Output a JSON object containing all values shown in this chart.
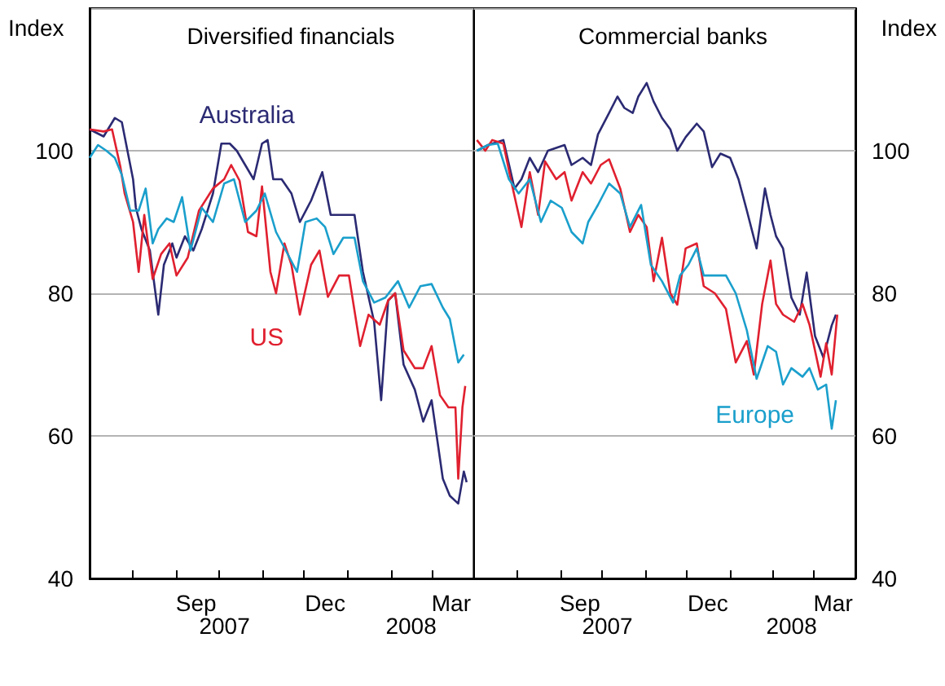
{
  "chart_data": [
    {
      "type": "line",
      "title": "Diversified financials",
      "ylabel": "Index",
      "xlim": [
        "2007-07-01",
        "2008-03-31"
      ],
      "ylim": [
        40,
        120
      ],
      "yticks": [
        40,
        60,
        80,
        100
      ],
      "grid": "y",
      "xticks": [
        {
          "value": "2007-08-01",
          "label": null
        },
        {
          "value": "2007-09-01",
          "label": null
        },
        {
          "value": "2007-10-01",
          "label": null
        },
        {
          "value": "2007-11-01",
          "label": null
        },
        {
          "value": "2007-12-01",
          "label": null
        },
        {
          "value": "2008-01-01",
          "label": null
        },
        {
          "value": "2008-02-01",
          "label": null
        },
        {
          "value": "2008-03-01",
          "label": null
        },
        {
          "value": "2007-09-15",
          "label": "Sep"
        },
        {
          "value": "2007-12-16",
          "label": "Dec"
        },
        {
          "value": "2008-03-15",
          "label": "Mar"
        }
      ],
      "annotations": [
        "2007",
        "2008"
      ],
      "series": [
        {
          "name": "Australia",
          "color": "#2b2a73",
          "x": [
            "2007-07-01",
            "2007-07-11",
            "2007-07-19",
            "2007-07-24",
            "2007-07-28",
            "2007-08-01",
            "2007-08-03",
            "2007-08-07",
            "2007-08-13",
            "2007-08-19",
            "2007-08-23",
            "2007-08-29",
            "2007-09-01",
            "2007-09-07",
            "2007-09-13",
            "2007-09-19",
            "2007-09-27",
            "2007-10-03",
            "2007-10-09",
            "2007-10-14",
            "2007-10-20",
            "2007-10-26",
            "2007-11-01",
            "2007-11-05",
            "2007-11-09",
            "2007-11-15",
            "2007-11-22",
            "2007-11-28",
            "2007-12-06",
            "2007-12-14",
            "2007-12-20",
            "2007-12-26",
            "2008-01-06",
            "2008-01-12",
            "2008-01-20",
            "2008-01-25",
            "2008-01-30",
            "2008-02-04",
            "2008-02-10",
            "2008-02-18",
            "2008-02-24",
            "2008-03-01",
            "2008-03-09",
            "2008-03-14",
            "2008-03-20",
            "2008-03-24",
            "2008-03-26"
          ],
          "values": [
            103,
            102,
            104.6,
            104,
            100,
            96,
            92,
            89,
            86,
            77,
            84,
            87,
            85,
            88,
            86,
            89,
            94,
            101,
            101,
            100,
            98,
            96,
            101,
            101.5,
            96,
            96,
            94,
            90,
            93,
            97,
            91,
            91,
            91,
            83,
            76,
            65,
            79,
            80,
            70,
            66.5,
            62,
            65,
            54,
            51.6,
            50.5,
            55,
            53.5
          ]
        },
        {
          "name": "US",
          "color": "#e0202f",
          "x": [
            "2007-07-01",
            "2007-07-11",
            "2007-07-17",
            "2007-07-23",
            "2007-07-26",
            "2007-08-01",
            "2007-08-05",
            "2007-08-09",
            "2007-08-15",
            "2007-08-21",
            "2007-08-27",
            "2007-09-01",
            "2007-09-09",
            "2007-09-17",
            "2007-09-27",
            "2007-10-05",
            "2007-10-10",
            "2007-10-16",
            "2007-10-22",
            "2007-10-28",
            "2007-11-01",
            "2007-11-07",
            "2007-11-11",
            "2007-11-17",
            "2007-11-22",
            "2007-11-28",
            "2007-12-06",
            "2007-12-12",
            "2007-12-18",
            "2007-12-26",
            "2008-01-02",
            "2008-01-10",
            "2008-01-16",
            "2008-01-24",
            "2008-01-30",
            "2008-02-04",
            "2008-02-10",
            "2008-02-18",
            "2008-02-24",
            "2008-03-01",
            "2008-03-07",
            "2008-03-13",
            "2008-03-18",
            "2008-03-20",
            "2008-03-23",
            "2008-03-25"
          ],
          "values": [
            103,
            102.7,
            103,
            97.7,
            94,
            90,
            83,
            91,
            82,
            85.5,
            87,
            82.5,
            85,
            91.6,
            94.7,
            96,
            98,
            95.8,
            88.6,
            88,
            95,
            83,
            80,
            87,
            84,
            77,
            84,
            86,
            79.5,
            82.5,
            82.5,
            72.6,
            77,
            75.6,
            79,
            80,
            72,
            69.5,
            69.5,
            72.6,
            65.7,
            64,
            64,
            54,
            64,
            67
          ]
        },
        {
          "color": "#1a9fcc",
          "x": [
            "2007-07-01",
            "2007-07-07",
            "2007-07-13",
            "2007-07-19",
            "2007-07-24",
            "2007-07-30",
            "2007-08-05",
            "2007-08-10",
            "2007-08-15",
            "2007-08-19",
            "2007-08-25",
            "2007-08-30",
            "2007-09-05",
            "2007-09-11",
            "2007-09-19",
            "2007-09-27",
            "2007-10-05",
            "2007-10-12",
            "2007-10-20",
            "2007-10-28",
            "2007-11-03",
            "2007-11-11",
            "2007-11-18",
            "2007-11-26",
            "2007-12-02",
            "2007-12-10",
            "2007-12-16",
            "2007-12-22",
            "2007-12-29",
            "2008-01-06",
            "2008-01-12",
            "2008-01-20",
            "2008-01-28",
            "2008-02-06",
            "2008-02-14",
            "2008-02-22",
            "2008-03-01",
            "2008-03-09",
            "2008-03-14",
            "2008-03-20",
            "2008-03-24"
          ],
          "values": [
            99,
            100.8,
            100,
            99,
            96.6,
            91.6,
            91.6,
            94.7,
            87,
            89,
            90.5,
            90,
            93.5,
            86,
            92,
            90,
            95.4,
            96,
            90,
            91.6,
            94,
            88.6,
            86,
            83,
            90,
            90.5,
            89.3,
            85.5,
            87.8,
            87.8,
            81.7,
            78.7,
            79.4,
            81.7,
            78,
            81,
            81.3,
            78,
            76.4,
            70.3,
            71.4
          ]
        }
      ]
    },
    {
      "type": "line",
      "title": "Commercial banks",
      "ylabel": "Index",
      "xlim": [
        "2007-07-01",
        "2008-03-31"
      ],
      "ylim": [
        40,
        120
      ],
      "yticks": [
        40,
        60,
        80,
        100
      ],
      "grid": "y",
      "xticks": [
        {
          "value": "2007-08-01",
          "label": null
        },
        {
          "value": "2007-09-01",
          "label": null
        },
        {
          "value": "2007-10-01",
          "label": null
        },
        {
          "value": "2007-11-01",
          "label": null
        },
        {
          "value": "2007-12-01",
          "label": null
        },
        {
          "value": "2008-01-01",
          "label": null
        },
        {
          "value": "2008-02-01",
          "label": null
        },
        {
          "value": "2008-03-01",
          "label": null
        },
        {
          "value": "2007-09-15",
          "label": "Sep"
        },
        {
          "value": "2007-12-16",
          "label": "Dec"
        },
        {
          "value": "2008-03-15",
          "label": "Mar"
        }
      ],
      "annotations": [
        "2007",
        "2008"
      ],
      "series": [
        {
          "color": "#2b2a73",
          "x": [
            "2007-07-03",
            "2007-07-11",
            "2007-07-22",
            "2007-07-30",
            "2007-08-04",
            "2007-08-10",
            "2007-08-16",
            "2007-08-23",
            "2007-08-29",
            "2007-09-04",
            "2007-09-09",
            "2007-09-17",
            "2007-09-23",
            "2007-09-28",
            "2007-10-06",
            "2007-10-12",
            "2007-10-17",
            "2007-10-23",
            "2007-10-27",
            "2007-11-02",
            "2007-11-07",
            "2007-11-13",
            "2007-11-19",
            "2007-11-24",
            "2007-11-30",
            "2007-12-08",
            "2007-12-13",
            "2007-12-19",
            "2007-12-25",
            "2008-01-01",
            "2008-01-07",
            "2008-01-13",
            "2008-01-20",
            "2008-01-26",
            "2008-01-30",
            "2008-02-03",
            "2008-02-08",
            "2008-02-14",
            "2008-02-20",
            "2008-02-25",
            "2008-03-02",
            "2008-03-08",
            "2008-03-14",
            "2008-03-17"
          ],
          "values": [
            100,
            100.8,
            101.5,
            94.7,
            96,
            99,
            97,
            100,
            100.4,
            100.8,
            98,
            99,
            98,
            102.3,
            105.3,
            107.6,
            106,
            105.3,
            107.6,
            109.5,
            106.9,
            104.6,
            103,
            100,
            101.9,
            103.8,
            102.7,
            97.7,
            99.6,
            99,
            96,
            91.6,
            86.3,
            94.7,
            91,
            88,
            86.3,
            79.4,
            77,
            82.9,
            74,
            71,
            75.5,
            77
          ]
        },
        {
          "color": "#e0202f",
          "x": [
            "2007-07-03",
            "2007-07-09",
            "2007-07-14",
            "2007-07-22",
            "2007-07-28",
            "2007-08-04",
            "2007-08-10",
            "2007-08-16",
            "2007-08-21",
            "2007-08-29",
            "2007-09-04",
            "2007-09-09",
            "2007-09-17",
            "2007-09-23",
            "2007-09-30",
            "2007-10-06",
            "2007-10-14",
            "2007-10-21",
            "2007-10-27",
            "2007-11-02",
            "2007-11-07",
            "2007-11-13",
            "2007-11-19",
            "2007-11-24",
            "2007-11-30",
            "2007-12-08",
            "2007-12-13",
            "2007-12-21",
            "2007-12-29",
            "2008-01-05",
            "2008-01-13",
            "2008-01-18",
            "2008-01-24",
            "2008-01-30",
            "2008-02-03",
            "2008-02-08",
            "2008-02-16",
            "2008-02-22",
            "2008-02-27",
            "2008-03-06",
            "2008-03-10",
            "2008-03-14",
            "2008-03-18"
          ],
          "values": [
            101.5,
            100,
            101.5,
            101,
            95.4,
            89.3,
            97,
            91,
            98.5,
            96,
            97,
            93,
            97,
            95.4,
            98,
            98.8,
            94.7,
            88.6,
            91,
            89.3,
            81.7,
            87.8,
            80,
            78.4,
            86.3,
            87,
            81,
            80,
            77.8,
            70.3,
            73.3,
            68.6,
            78.5,
            84.6,
            78.5,
            77,
            76,
            78.5,
            75.6,
            68.3,
            73,
            68.6,
            77
          ]
        },
        {
          "name": "Europe",
          "color": "#1a9fcc",
          "x": [
            "2007-07-03",
            "2007-07-11",
            "2007-07-18",
            "2007-07-26",
            "2007-08-02",
            "2007-08-10",
            "2007-08-18",
            "2007-08-25",
            "2007-09-02",
            "2007-09-09",
            "2007-09-17",
            "2007-09-21",
            "2007-09-28",
            "2007-10-06",
            "2007-10-14",
            "2007-10-21",
            "2007-10-29",
            "2007-11-05",
            "2007-11-13",
            "2007-11-21",
            "2007-11-26",
            "2007-12-02",
            "2007-12-08",
            "2007-12-13",
            "2007-12-21",
            "2007-12-29",
            "2008-01-05",
            "2008-01-13",
            "2008-01-20",
            "2008-01-28",
            "2008-02-03",
            "2008-02-08",
            "2008-02-14",
            "2008-02-22",
            "2008-02-27",
            "2008-03-04",
            "2008-03-10",
            "2008-03-14",
            "2008-03-17"
          ],
          "values": [
            100,
            100.8,
            101,
            96,
            94,
            96,
            90,
            93,
            92,
            88.6,
            87,
            90,
            92.4,
            95.4,
            94,
            89.3,
            92.4,
            84,
            81.7,
            78.7,
            82.5,
            84,
            86.3,
            82.5,
            82.5,
            82.5,
            80,
            74.8,
            68,
            72.6,
            71.8,
            67.2,
            69.5,
            68.3,
            69.5,
            66.5,
            67.2,
            61,
            65
          ]
        }
      ]
    }
  ]
}
